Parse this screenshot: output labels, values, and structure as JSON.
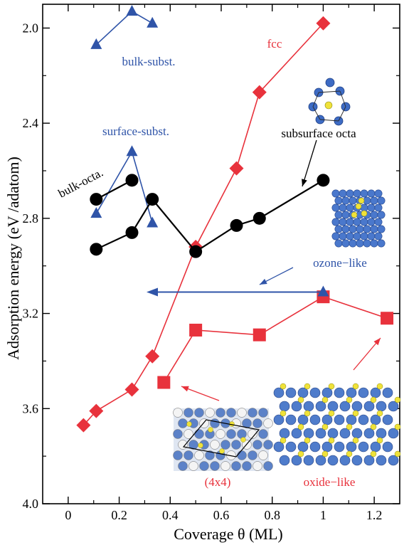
{
  "chart_data": {
    "type": "line",
    "xlabel": "Coverage θ (ML)",
    "ylabel": "Adsorption energy (eV /adatom)",
    "xlim": [
      -0.1,
      1.3
    ],
    "ylim": [
      4.0,
      1.9
    ],
    "y_inverted": true,
    "x_ticks": [
      "0",
      "0.2",
      "0.4",
      "0.6",
      "0.8",
      "1",
      "1.2"
    ],
    "y_ticks": [
      "2.0",
      "2.4",
      "2.8",
      "3.2",
      "3.6",
      "4.0"
    ],
    "series": [
      {
        "name": "fcc",
        "color": "#e8323c",
        "marker": "diamond",
        "points": [
          [
            0.06,
            3.67
          ],
          [
            0.11,
            3.61
          ],
          [
            0.25,
            3.52
          ],
          [
            0.33,
            3.38
          ],
          [
            0.5,
            2.92
          ],
          [
            0.66,
            2.59
          ],
          [
            0.75,
            2.27
          ],
          [
            1.0,
            1.98
          ]
        ]
      },
      {
        "name": "oxide-like",
        "color": "#e8323c",
        "marker": "square",
        "points": [
          [
            0.375,
            3.49
          ],
          [
            0.5,
            3.27
          ],
          [
            0.75,
            3.29
          ],
          [
            1.0,
            3.13
          ],
          [
            1.25,
            3.22
          ]
        ]
      },
      {
        "name": "bulk-subst.",
        "color": "#2f54a8",
        "marker": "triangle",
        "points": [
          [
            0.11,
            2.07
          ],
          [
            0.25,
            1.93
          ],
          [
            0.33,
            1.98
          ]
        ]
      },
      {
        "name": "surface-subst.",
        "color": "#2f54a8",
        "marker": "triangle",
        "points": [
          [
            0.11,
            2.78
          ],
          [
            0.25,
            2.52
          ],
          [
            0.33,
            2.82
          ]
        ]
      },
      {
        "name": "bulk-octa.",
        "color": "#000000",
        "marker": "circle",
        "points": [
          [
            0.11,
            2.72
          ],
          [
            0.25,
            2.64
          ]
        ]
      },
      {
        "name": "subsurface octa",
        "color": "#000000",
        "marker": "circle",
        "points": [
          [
            0.11,
            2.93
          ],
          [
            0.25,
            2.86
          ],
          [
            0.33,
            2.72
          ],
          [
            0.5,
            2.94
          ],
          [
            0.66,
            2.83
          ],
          [
            0.75,
            2.8
          ],
          [
            1.0,
            2.64
          ]
        ]
      },
      {
        "name": "ozone-like",
        "color": "#2f54a8",
        "marker": "triangle",
        "points": [
          [
            1.0,
            3.11
          ]
        ]
      }
    ],
    "annotations": [
      {
        "text": "fcc",
        "color": "#e8323c"
      },
      {
        "text": "bulk-subst.",
        "color": "#2f54a8"
      },
      {
        "text": "surface-subst.",
        "color": "#2f54a8"
      },
      {
        "text": "bulk-octa.",
        "color": "#000000"
      },
      {
        "text": "subsurface octa",
        "color": "#000000"
      },
      {
        "text": "ozone−like",
        "color": "#2f54a8"
      },
      {
        "text": "(4x4)",
        "color": "#e8323c"
      },
      {
        "text": "oxide−like",
        "color": "#e8323c"
      }
    ]
  }
}
